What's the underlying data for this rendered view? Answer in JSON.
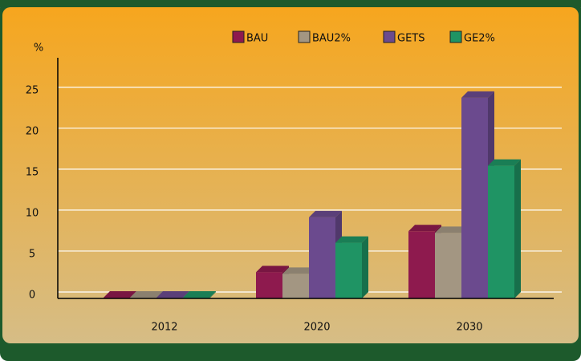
{
  "chart_data": {
    "type": "bar3d",
    "y_label": "%",
    "categories": [
      "2012",
      "2020",
      "2030"
    ],
    "series": [
      {
        "name": "BAU",
        "color": "#8e1a4e",
        "values": [
          0.1,
          3.2,
          8.2
        ]
      },
      {
        "name": "BAU2%",
        "color": "#a39682",
        "values": [
          0.1,
          3.0,
          8.0
        ]
      },
      {
        "name": "GETS",
        "color": "#6b4a8e",
        "values": [
          0.1,
          9.9,
          24.5
        ]
      },
      {
        "name": "GE2%",
        "color": "#1f9464",
        "values": [
          0.1,
          6.8,
          16.2
        ]
      }
    ],
    "ylim": [
      0,
      28.6
    ],
    "yticks": [
      0,
      5,
      10,
      15,
      20,
      25
    ],
    "grid": true,
    "legend": "top"
  }
}
